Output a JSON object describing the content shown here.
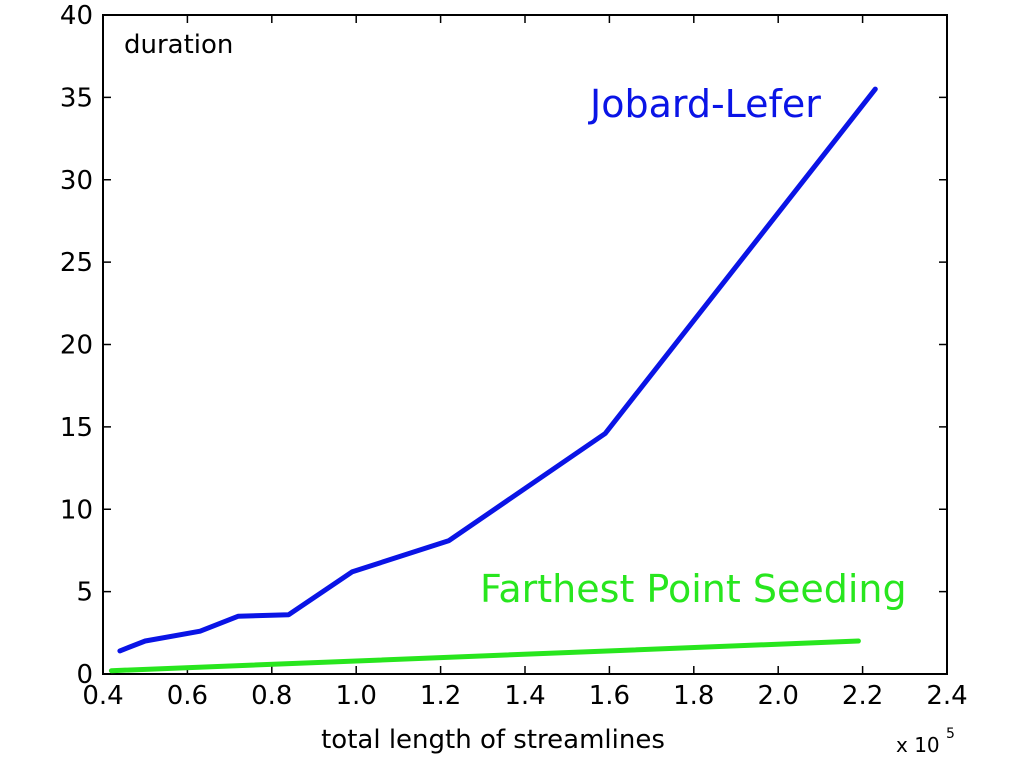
{
  "chart_data": {
    "type": "line",
    "title": "",
    "ylabel": "duration",
    "xlabel": "total length of streamlines",
    "x_multiplier_label": "x 10",
    "x_multiplier_exponent": "5",
    "xlim": [
      0.4,
      2.4
    ],
    "ylim": [
      0,
      40
    ],
    "xticks": [
      "0.4",
      "0.6",
      "0.8",
      "1.0",
      "1.2",
      "1.4",
      "1.6",
      "1.8",
      "2.0",
      "2.2",
      "2.4"
    ],
    "yticks": [
      "0",
      "5",
      "10",
      "15",
      "20",
      "25",
      "30",
      "35",
      "40"
    ],
    "grid": false,
    "legend": "inline annotations",
    "series": [
      {
        "name": "Jobard-Lefer",
        "color": "#0a14e6",
        "x": [
          0.44,
          0.5,
          0.63,
          0.72,
          0.84,
          0.99,
          1.22,
          1.59,
          2.23
        ],
        "y": [
          1.4,
          2.0,
          2.6,
          3.5,
          3.6,
          6.2,
          8.1,
          14.6,
          35.5
        ]
      },
      {
        "name": "Farthest Point Seeding",
        "color": "#28e61e",
        "x": [
          0.42,
          2.19
        ],
        "y": [
          0.2,
          2.0
        ]
      }
    ]
  }
}
